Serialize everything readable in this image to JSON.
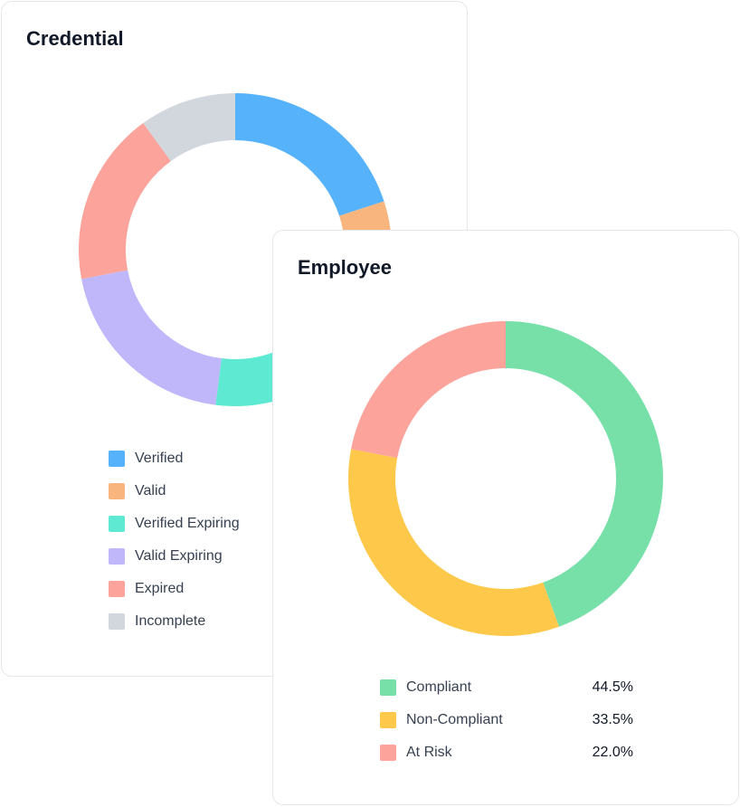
{
  "credential": {
    "title": "Credential",
    "legend": [
      {
        "label": "Verified",
        "color": "#56b2fb"
      },
      {
        "label": "Valid",
        "color": "#f8b57e"
      },
      {
        "label": "Verified Expiring",
        "color": "#5eead2"
      },
      {
        "label": "Valid Expiring",
        "color": "#c0b7fb"
      },
      {
        "label": "Expired",
        "color": "#fca49c"
      },
      {
        "label": "Incomplete",
        "color": "#d2d6dd"
      }
    ]
  },
  "employee": {
    "title": "Employee",
    "legend": [
      {
        "label": "Compliant",
        "value": "44.5%",
        "color": "#77e0a8"
      },
      {
        "label": "Non-Compliant",
        "value": "33.5%",
        "color": "#fec84b"
      },
      {
        "label": "At Risk",
        "value": "22.0%",
        "color": "#fca49c"
      }
    ]
  },
  "chart_data": [
    {
      "type": "pie",
      "title": "Credential",
      "donut": true,
      "labels": [
        "Verified",
        "Valid",
        "Verified Expiring",
        "Valid Expiring",
        "Expired",
        "Incomplete"
      ],
      "values": [
        20,
        5,
        27,
        20,
        18,
        10
      ],
      "colors": [
        "#56b2fb",
        "#f8b57e",
        "#5eead2",
        "#c0b7fb",
        "#fca49c",
        "#d2d6dd"
      ],
      "legend": "bottom"
    },
    {
      "type": "pie",
      "title": "Employee",
      "donut": true,
      "labels": [
        "Compliant",
        "Non-Compliant",
        "At Risk"
      ],
      "values": [
        44.5,
        33.5,
        22.0
      ],
      "colors": [
        "#77e0a8",
        "#fec84b",
        "#fca49c"
      ],
      "legend": "bottom"
    }
  ]
}
